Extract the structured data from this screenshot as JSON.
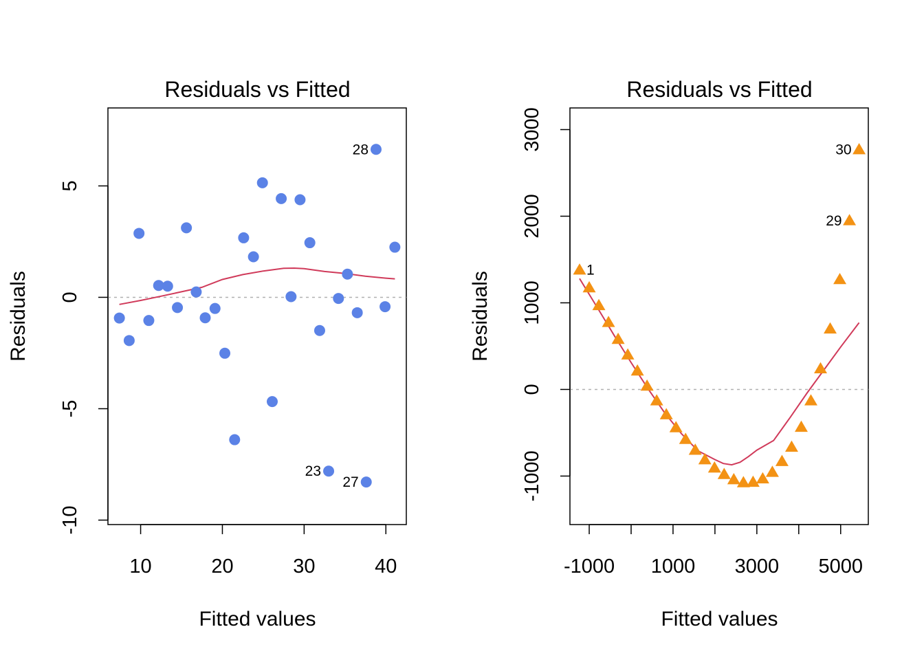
{
  "chart_data": [
    {
      "type": "scatter",
      "title": "Residuals vs Fitted",
      "xlabel": "Fitted values",
      "ylabel": "Residuals",
      "xlim": [
        6,
        42.5
      ],
      "ylim": [
        -10.2,
        8.5
      ],
      "x_ticks": [
        10,
        20,
        30,
        40
      ],
      "x_tick_labels": [
        "10",
        "20",
        "30",
        "40"
      ],
      "y_ticks": [
        -10,
        -5,
        0,
        5
      ],
      "y_tick_labels": [
        "-10",
        "-5",
        "0",
        "5"
      ],
      "marker": "circle",
      "point_color": "#5b82e6",
      "smooth_color": "#d03a5a",
      "refline_color": "#b0b0b0",
      "grid": false,
      "points": {
        "x": [
          7.4,
          8.6,
          9.8,
          11.0,
          12.2,
          13.3,
          14.5,
          15.6,
          16.8,
          17.9,
          19.1,
          20.3,
          21.5,
          22.6,
          23.8,
          24.9,
          26.1,
          27.2,
          28.4,
          29.5,
          30.7,
          31.9,
          33.0,
          34.2,
          35.3,
          36.5,
          37.6,
          38.8,
          39.9,
          41.1
        ],
        "y": [
          -0.93,
          -1.94,
          2.87,
          -1.04,
          0.53,
          0.5,
          -0.46,
          3.12,
          0.24,
          -0.92,
          -0.5,
          -2.51,
          -6.39,
          2.67,
          1.82,
          5.14,
          -4.68,
          4.43,
          0.03,
          4.38,
          2.45,
          -1.49,
          -7.8,
          -0.05,
          1.04,
          -0.69,
          -8.29,
          6.64,
          -0.42,
          2.25
        ]
      },
      "smooth": {
        "x": [
          7.4,
          10.0,
          12.5,
          15.0,
          17.5,
          20.0,
          22.5,
          25.0,
          27.5,
          28.8,
          30.0,
          32.5,
          35.0,
          37.5,
          40.0,
          41.1
        ],
        "y": [
          -0.32,
          -0.14,
          0.05,
          0.25,
          0.45,
          0.8,
          1.02,
          1.18,
          1.3,
          1.31,
          1.29,
          1.16,
          1.07,
          0.95,
          0.86,
          0.83
        ]
      },
      "point_labels": [
        {
          "text": "28",
          "x": 38.8,
          "y": 6.64
        },
        {
          "text": "23",
          "x": 33.0,
          "y": -7.8
        },
        {
          "text": "27",
          "x": 37.6,
          "y": -8.29
        }
      ]
    },
    {
      "type": "scatter",
      "title": "Residuals vs Fitted",
      "xlabel": "Fitted values",
      "ylabel": "Residuals",
      "xlim": [
        -1460,
        5660
      ],
      "ylim": [
        -1560,
        3250
      ],
      "x_ticks": [
        -1000,
        0,
        1000,
        2000,
        3000,
        4000,
        5000
      ],
      "x_tick_labels": [
        "-1000",
        "",
        "1000",
        "",
        "3000",
        "",
        "5000"
      ],
      "y_ticks": [
        -1000,
        0,
        1000,
        2000,
        3000
      ],
      "y_tick_labels": [
        "-1000",
        "0",
        "1000",
        "2000",
        "3000"
      ],
      "marker": "triangle",
      "point_color": "#f39214",
      "smooth_color": "#d03a5a",
      "refline_color": "#b0b0b0",
      "grid": false,
      "points": {
        "x": [
          -1230,
          -1000,
          -770,
          -540,
          -310,
          -80,
          150,
          380,
          610,
          840,
          1070,
          1300,
          1530,
          1760,
          1990,
          2220,
          2450,
          2680,
          2910,
          3140,
          3370,
          3600,
          3830,
          4060,
          4290,
          4520,
          4750,
          4980,
          5210,
          5440
        ],
        "y": [
          1380,
          1175,
          970,
          775,
          580,
          400,
          215,
          40,
          -130,
          -290,
          -440,
          -575,
          -700,
          -810,
          -905,
          -980,
          -1040,
          -1075,
          -1070,
          -1030,
          -955,
          -830,
          -665,
          -435,
          -130,
          240,
          700,
          1270,
          1950,
          2770
        ]
      },
      "smooth": {
        "x": [
          -1230,
          -800,
          -400,
          0,
          400,
          800,
          1200,
          1600,
          2000,
          2200,
          2400,
          2600,
          2800,
          3000,
          3400,
          3800,
          4200,
          4600,
          5000,
          5440
        ],
        "y": [
          1280,
          940,
          620,
          310,
          10,
          -270,
          -510,
          -710,
          -810,
          -855,
          -870,
          -840,
          -775,
          -700,
          -590,
          -320,
          -40,
          225,
          490,
          770
        ]
      },
      "point_labels": [
        {
          "text": "1",
          "x": -1230,
          "y": 1380
        },
        {
          "text": "29",
          "x": 5210,
          "y": 1950
        },
        {
          "text": "30",
          "x": 5440,
          "y": 2770
        }
      ]
    }
  ]
}
